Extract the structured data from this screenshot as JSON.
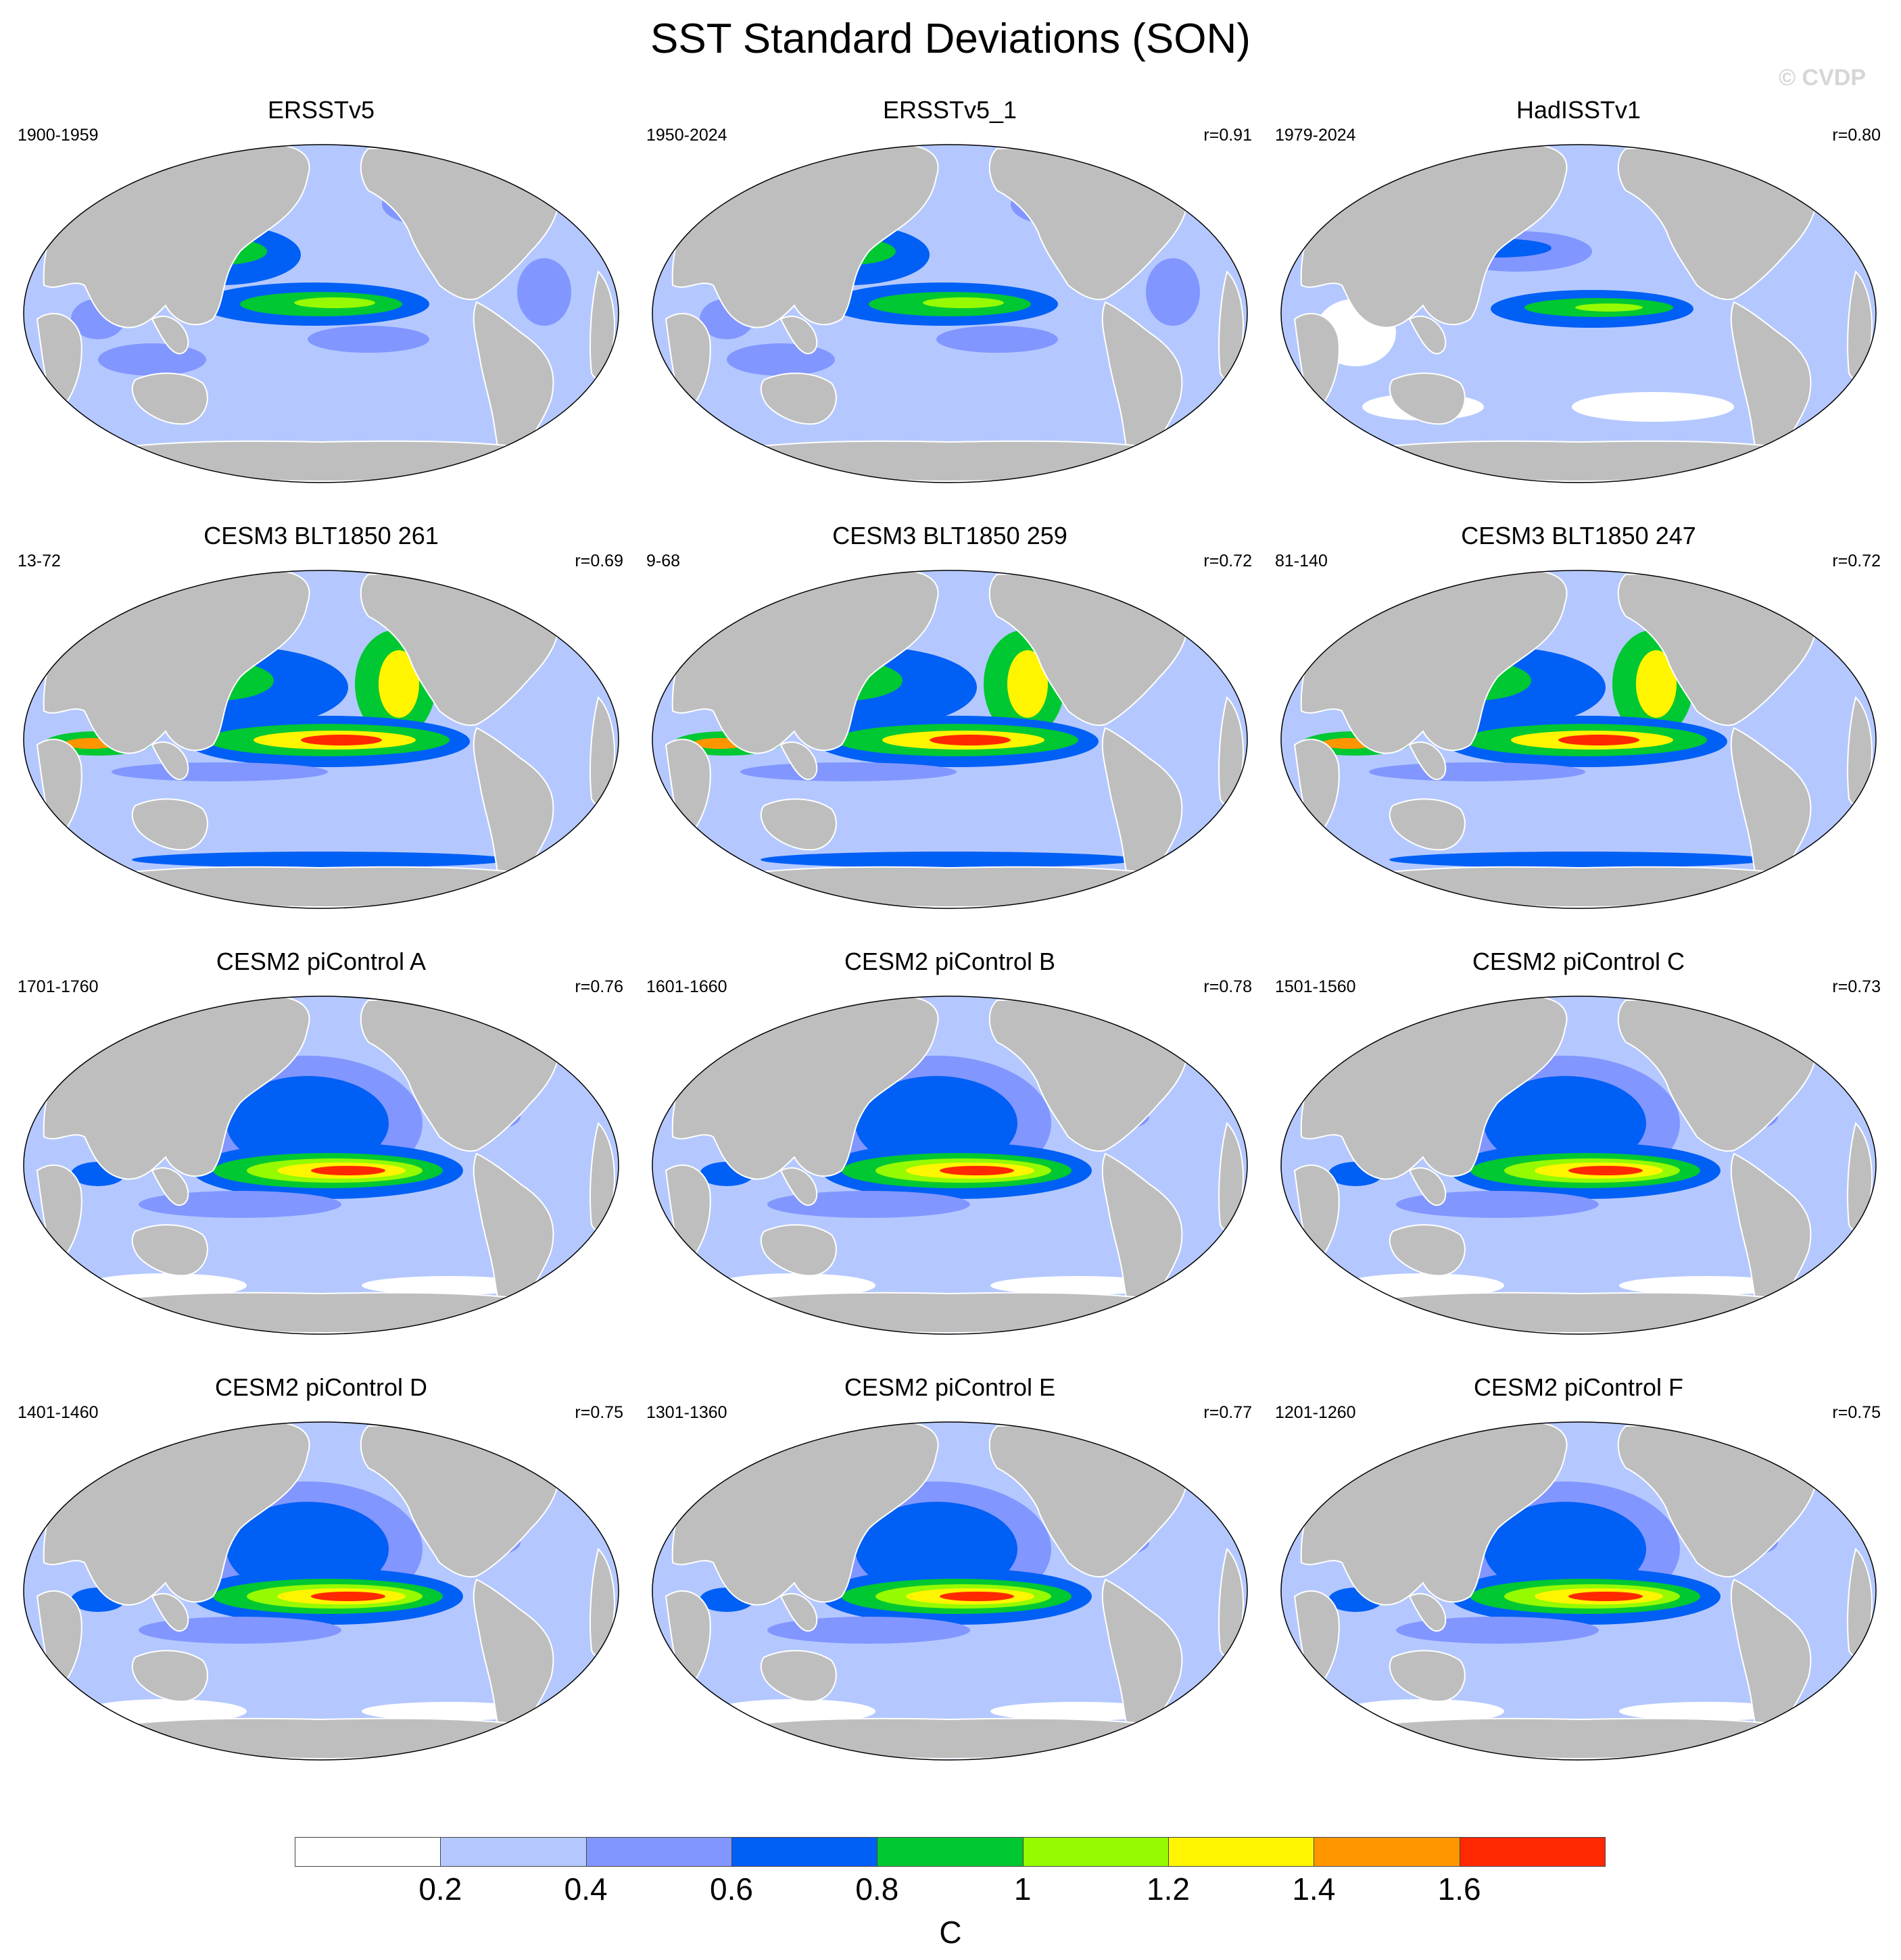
{
  "title": "SST Standard Deviations (SON)",
  "watermark": "© CVDP",
  "panels": [
    {
      "title": "ERSSTv5",
      "period": "1900-1959",
      "r": "",
      "style": 0
    },
    {
      "title": "ERSSTv5_1",
      "period": "1950-2024",
      "r": "r=0.91",
      "style": 0
    },
    {
      "title": "HadISSTv1",
      "period": "1979-2024",
      "r": "r=0.80",
      "style": 1
    },
    {
      "title": "CESM3 BLT1850 261",
      "period": "13-72",
      "r": "r=0.69",
      "style": 2
    },
    {
      "title": "CESM3 BLT1850 259",
      "period": "9-68",
      "r": "r=0.72",
      "style": 2
    },
    {
      "title": "CESM3 BLT1850 247",
      "period": "81-140",
      "r": "r=0.72",
      "style": 2
    },
    {
      "title": "CESM2 piControl A",
      "period": "1701-1760",
      "r": "r=0.76",
      "style": 3
    },
    {
      "title": "CESM2 piControl B",
      "period": "1601-1660",
      "r": "r=0.78",
      "style": 3
    },
    {
      "title": "CESM2 piControl C",
      "period": "1501-1560",
      "r": "r=0.73",
      "style": 3
    },
    {
      "title": "CESM2 piControl D",
      "period": "1401-1460",
      "r": "r=0.75",
      "style": 3
    },
    {
      "title": "CESM2 piControl E",
      "period": "1301-1360",
      "r": "r=0.77",
      "style": 3
    },
    {
      "title": "CESM2 piControl F",
      "period": "1201-1260",
      "r": "r=0.75",
      "style": 3
    }
  ],
  "colorbar": {
    "colors": [
      "#ffffff",
      "#b4c8ff",
      "#8296ff",
      "#005ff5",
      "#00c832",
      "#96fa00",
      "#fff500",
      "#ff9600",
      "#ff2800"
    ],
    "labels": [
      "0.2",
      "0.4",
      "0.6",
      "0.8",
      "1",
      "1.2",
      "1.4",
      "1.6"
    ],
    "units": "C"
  },
  "colors": {
    "land": "#bebebe",
    "coast": "#ffffff",
    "border": "#000000"
  }
}
